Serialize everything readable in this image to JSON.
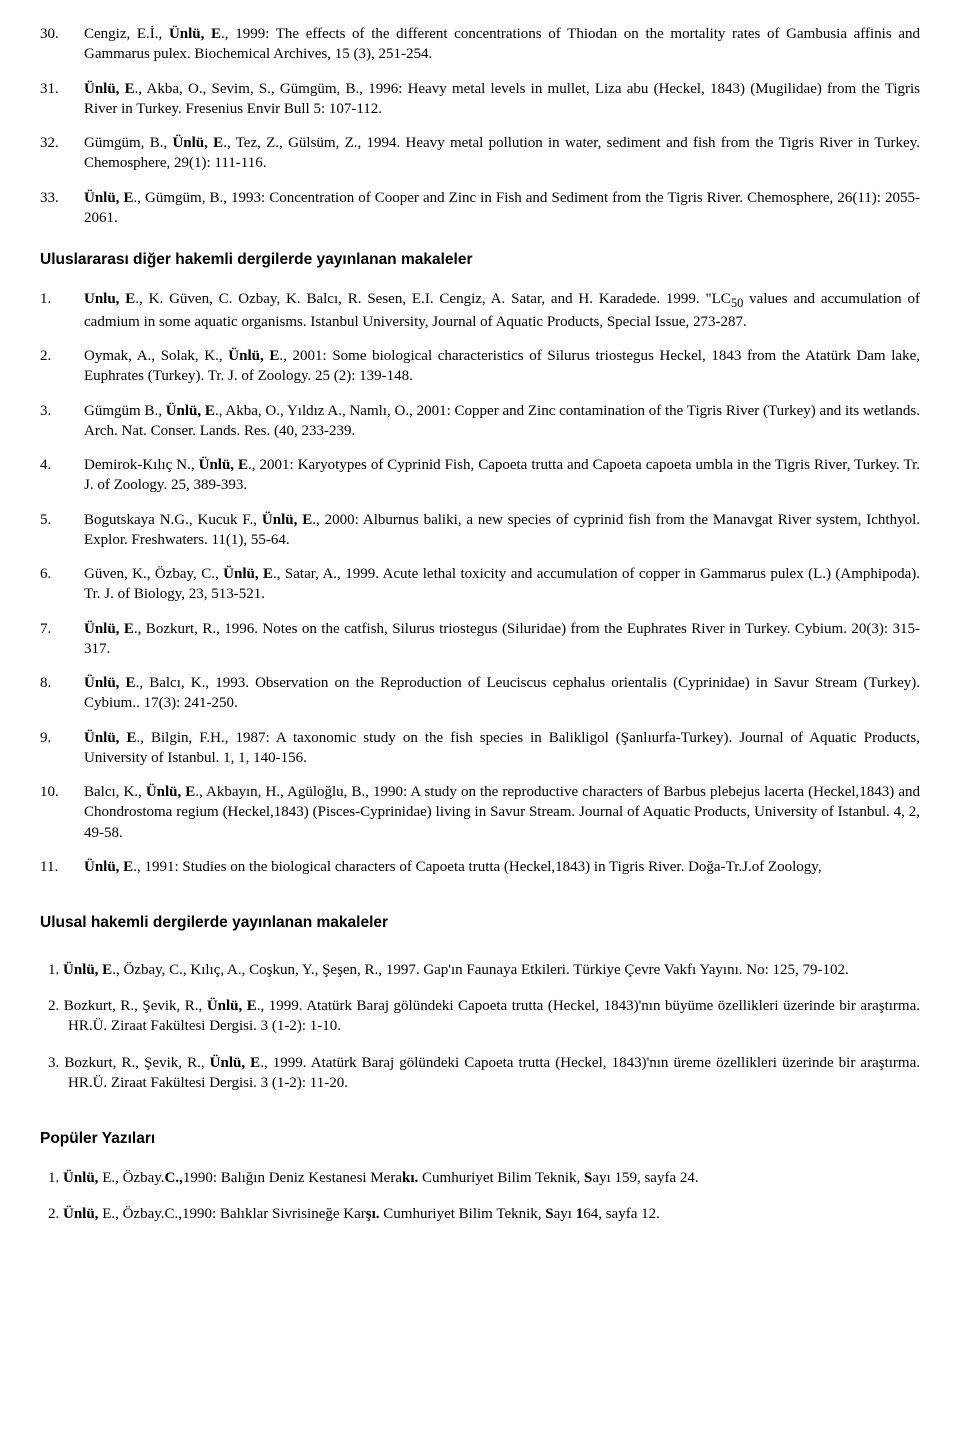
{
  "top_items": [
    {
      "n": "30.",
      "html": "Cengiz, E.İ., <b>Ünlü, E</b>., 1999: The effects of the different concentrations of Thiodan on the mortality rates of Gambusia affinis and Gammarus pulex. Biochemical Archives, 15 (3), 251-254."
    },
    {
      "n": "31.",
      "html": "<b>Ünlü, E</b>., Akba, O., Sevim, S., Gümgüm, B., 1996: Heavy metal levels in mullet, Liza abu (Heckel, 1843) (Mugilidae) from the Tigris River in Turkey. Fresenius Envir Bull 5: 107-112."
    },
    {
      "n": "32.",
      "html": "Gümgüm, B., <b>Ünlü, E</b>., Tez, Z., Gülsüm, Z., 1994. Heavy metal pollution in water, sediment and fish from the Tigris River in Turkey. Chemosphere, 29(1): 111-116."
    },
    {
      "n": "33.",
      "html": "<b>Ünlü, E</b>., Gümgüm, B., 1993: Concentration of Cooper and Zinc in Fish and Sediment from the Tigris River. Chemosphere, 26(11): 2055-2061."
    }
  ],
  "section1_title": "Uluslararası diğer hakemli dergilerde yayınlanan makaleler",
  "section1_items": [
    {
      "n": "1.",
      "html": "<b>Unlu, E</b>., K. Güven, C. Ozbay, K. Balcı, R. Sesen, E.I. Cengiz, A. Satar, and H. Karadede. 1999. \"LC<sub>50</sub> values and accumulation of cadmium in some aquatic organisms. Istanbul University, Journal of Aquatic Products, Special Issue, 273-287."
    },
    {
      "n": "2.",
      "html": "Oymak, A., Solak, K., <b>Ünlü, E</b>., 2001: Some biological characteristics of Silurus triostegus Heckel, 1843 from the Atatürk Dam lake, Euphrates (Turkey). Tr. J. of Zoology. 25 (2): 139-148."
    },
    {
      "n": "3.",
      "html": "Gümgüm B., <b>Ünlü, E</b>., Akba, O., Yıldız A., Namlı, O., 2001: Copper and Zinc contamination of the Tigris River (Turkey) and its wetlands. Arch. Nat. Conser. Lands. Res. (40, 233-239."
    },
    {
      "n": "4.",
      "html": "Demirok-Kılıç N., <b>Ünlü, E</b>., 2001: Karyotypes of Cyprinid Fish, Capoeta trutta and Capoeta capoeta umbla in the Tigris River, Turkey. Tr. J. of Zoology. 25, 389-393."
    },
    {
      "n": "5.",
      "html": "Bogutskaya N.G., Kucuk F., <b>Ünlü, E</b>., 2000: Alburnus baliki, a new species of cyprinid fish from the Manavgat River system, Ichthyol. Explor. Freshwaters. 11(1), 55-64."
    },
    {
      "n": "6.",
      "html": "Güven, K., Özbay, C., <b>Ünlü, E</b>., Satar, A., 1999. Acute lethal toxicity and accumulation of copper in Gammarus pulex (L.) (Amphipoda). Tr. J. of Biology, 23, 513-521."
    },
    {
      "n": "7.",
      "html": "<b>Ünlü, E</b>., Bozkurt, R., 1996. Notes on the catfish, Silurus triostegus (Siluridae) from the Euphrates River in Turkey. Cybium. 20(3): 315-317."
    },
    {
      "n": "8.",
      "html": "<b>Ünlü, E</b>., Balcı, K., 1993. Observation on the Reproduction of Leuciscus cephalus orientalis (Cyprinidae) in Savur Stream (Turkey). Cybium.. 17(3): 241-250."
    },
    {
      "n": "9.",
      "html": "<b>Ünlü, E</b>., Bilgin, F.H., 1987: A taxonomic study on the fish species in Balikligol (Şanlıurfa-Turkey). Journal of Aquatic  Products, University of Istanbul. 1, 1, 140-156."
    },
    {
      "n": "10.",
      "html": "Balcı, K., <b>Ünlü, E</b>., Akbayın, H., Agüloğlu, B., 1990: A study on the reproductive characters of  Barbus plebejus lacerta (Heckel,1843) and Chondrostoma regium (Heckel,1843) (Pisces-Cyprinidae) living in Savur Stream. Journal of Aquatic Products, University of Istanbul. 4, 2, 49-58."
    },
    {
      "n": "11.",
      "html": "<b>Ünlü, E</b>., 1991: Studies on the biological characters of Capoeta trutta (Heckel,1843) in Tigris River. Doğa-Tr.J.of Zoology,"
    }
  ],
  "section2_title": "Ulusal hakemli dergilerde yayınlanan makaleler",
  "section2_items": [
    "1. <b>Ünlü, E</b>., Özbay, C., Kılıç, A., Coşkun, Y., Şeşen, R., 1997. Gap'ın Faunaya Etkileri. Türkiye Çevre Vakfı Yayını. No: 125, 79-102.",
    "2. Bozkurt, R., Şevik, R., <b>Ünlü, E</b>., 1999. Atatürk Baraj gölündeki Capoeta trutta (Heckel, 1843)'nın büyüme özellikleri üzerinde bir araştırma. HR.Ü. Ziraat Fakültesi Dergisi. 3 (1-2): 1-10.",
    "3. Bozkurt, R., Şevik, R., <b>Ünlü, E</b>., 1999. Atatürk Baraj gölündeki Capoeta trutta (Heckel, 1843)'nın üreme özellikleri üzerinde bir araştırma. HR.Ü. Ziraat Fakültesi Dergisi. 3 (1-2): 11-20."
  ],
  "section3_title": "Popüler Yazıları",
  "section3_items": [
    "1. <b>Ünlü,</b> E., Özbay.<b>C.,</b>1990: Balığın Deniz Kestanesi Mera<b>kı.</b> Cumhuriyet Bilim Teknik, <b>S</b>ayı 159, sayfa 24.",
    "2. <b>Ünlü,</b> E., Özbay.C.,1990: Balıklar Sivrisineğe Kar<b>şı.</b> Cumhuriyet Bilim Teknik, <b>S</b>ayı <b>1</b>64, sayfa 12."
  ]
}
